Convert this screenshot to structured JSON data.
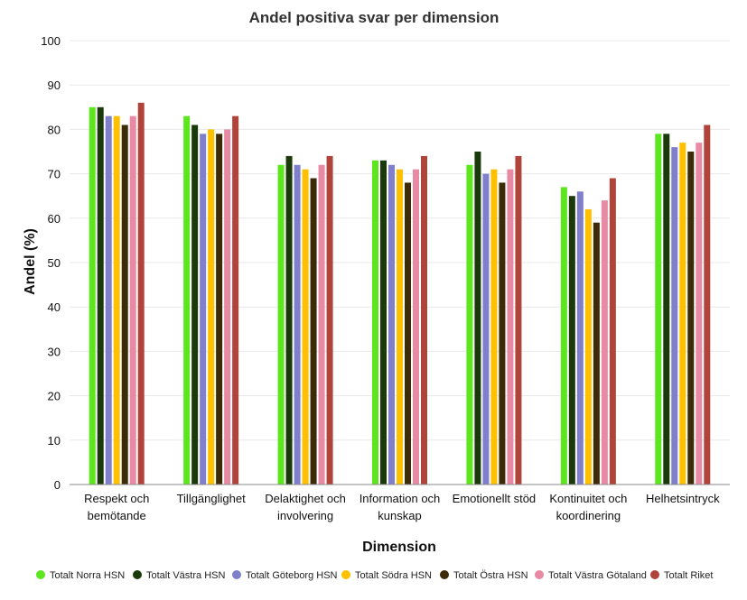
{
  "chart_data": {
    "type": "bar",
    "title": "Andel positiva svar per dimension",
    "xlabel": "Dimension",
    "ylabel": "Andel (%)",
    "ylim": [
      0,
      100
    ],
    "yticks": [
      0,
      10,
      20,
      30,
      40,
      50,
      60,
      70,
      80,
      90,
      100
    ],
    "grid": true,
    "legend_position": "bottom",
    "categories": [
      [
        "Respekt och",
        "bemötande"
      ],
      [
        "Tillgänglighet"
      ],
      [
        "Delaktighet och",
        "involvering"
      ],
      [
        "Information och",
        "kunskap"
      ],
      [
        "Emotionellt stöd"
      ],
      [
        "Kontinuitet och",
        "koordinering"
      ],
      [
        "Helhetsintryck"
      ]
    ],
    "series": [
      {
        "name": "Totalt Norra HSN",
        "color": "#5ce61e",
        "values": [
          85,
          83,
          72,
          73,
          72,
          67,
          79
        ]
      },
      {
        "name": "Totalt Västra HSN",
        "color": "#1b3a0c",
        "values": [
          85,
          81,
          74,
          73,
          75,
          65,
          79
        ]
      },
      {
        "name": "Totalt Göteborg HSN",
        "color": "#7f7fcc",
        "values": [
          83,
          79,
          72,
          72,
          70,
          66,
          76
        ]
      },
      {
        "name": "Totalt Södra HSN",
        "color": "#ffc000",
        "values": [
          83,
          80,
          71,
          71,
          71,
          62,
          77
        ]
      },
      {
        "name": "Totalt Östra HSN",
        "color": "#3d2b08",
        "values": [
          81,
          79,
          69,
          68,
          68,
          59,
          75
        ]
      },
      {
        "name": "Totalt Västra Götaland",
        "color": "#e98aa4",
        "values": [
          83,
          80,
          72,
          71,
          71,
          64,
          77
        ]
      },
      {
        "name": "Totalt Riket",
        "color": "#b1443a",
        "values": [
          86,
          83,
          74,
          74,
          74,
          69,
          81
        ]
      }
    ]
  }
}
